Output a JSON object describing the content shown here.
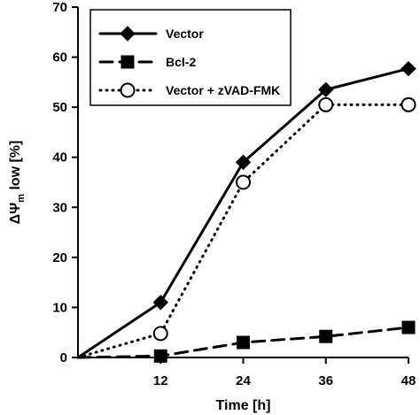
{
  "chart_data": {
    "type": "line",
    "x": [
      0,
      12,
      24,
      36,
      48
    ],
    "xticks": [
      12,
      24,
      36,
      48
    ],
    "xlabel": "Time [h]",
    "ylabel": {
      "symbol": "ΔΨ",
      "subscript": "m",
      "suffix": " low [%]"
    },
    "xlim": [
      0,
      48
    ],
    "ylim": [
      0,
      70
    ],
    "yticks": [
      0,
      10,
      20,
      30,
      40,
      50,
      60,
      70
    ],
    "grid": false,
    "legend_position": "top-left",
    "series": [
      {
        "name": "Vector",
        "values": [
          0,
          11,
          39,
          53.5,
          57.7
        ],
        "line": "solid",
        "marker": "diamond-filled",
        "color": "#000000"
      },
      {
        "name": "Bcl-2",
        "values": [
          0,
          0.3,
          3,
          4.2,
          6
        ],
        "line": "dashed",
        "marker": "square-filled",
        "color": "#000000"
      },
      {
        "name": "Vector + zVAD-FMK",
        "values": [
          0,
          4.8,
          35,
          50.5,
          50.5
        ],
        "line": "dotted",
        "marker": "circle-open",
        "color": "#000000"
      }
    ]
  }
}
